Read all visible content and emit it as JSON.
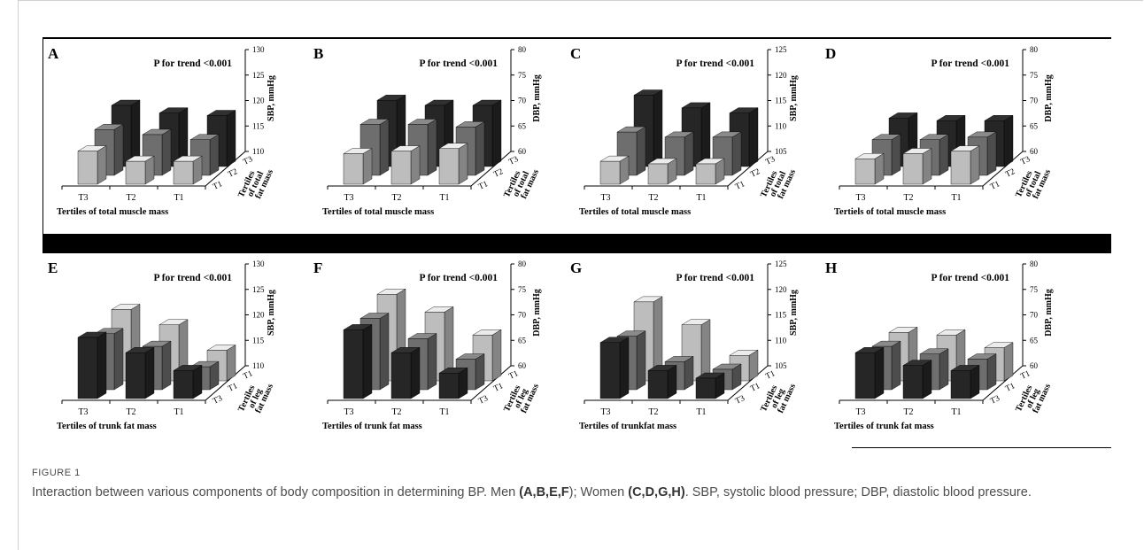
{
  "figure": {
    "label": "FIGURE 1",
    "caption_parts": [
      {
        "t": "Interaction between various components of body composition in determining BP. Men ",
        "b": false
      },
      {
        "t": "(A,B,E,F",
        "b": true
      },
      {
        "t": "); Women ",
        "b": false
      },
      {
        "t": "(C,D,G,H)",
        "b": true
      },
      {
        "t": ". SBP, systolic blood pressure; DBP, diastolic blood pressure.",
        "b": false
      }
    ]
  },
  "chart_data": [
    {
      "type": "bar",
      "panel": "A",
      "annotation": "P for trend <0.001",
      "z_label": "SBP, mmHg",
      "z_ticks": [
        110,
        115,
        120,
        125,
        130
      ],
      "zlim": [
        110,
        130
      ],
      "x_label": "Tertiles of total muscle mass",
      "x_categories": [
        "T3",
        "T2",
        "T1"
      ],
      "depth_label": [
        "Tertiles",
        "of total",
        "fat mass"
      ],
      "depth_categories": [
        "T1",
        "T2",
        "T3"
      ],
      "shade_order": [
        "light",
        "mid",
        "dark"
      ],
      "series": [
        {
          "name": "T1",
          "values": [
            116.5,
            114.5,
            114.5
          ]
        },
        {
          "name": "T2",
          "values": [
            119,
            118,
            117
          ]
        },
        {
          "name": "T3",
          "values": [
            122,
            120.5,
            120
          ]
        }
      ]
    },
    {
      "type": "bar",
      "panel": "B",
      "annotation": "P for trend <0.001",
      "z_label": "DBP, mmHg",
      "z_ticks": [
        60,
        65,
        70,
        75,
        80
      ],
      "zlim": [
        60,
        80
      ],
      "x_label": "Tertiles of total muscle mass",
      "x_categories": [
        "T3",
        "T2",
        "T1"
      ],
      "depth_label": [
        "Tertiles",
        "of total",
        "fat mass"
      ],
      "depth_categories": [
        "T1",
        "T2",
        "T3"
      ],
      "shade_order": [
        "light",
        "mid",
        "dark"
      ],
      "series": [
        {
          "name": "T1",
          "values": [
            66,
            66.5,
            67
          ]
        },
        {
          "name": "T2",
          "values": [
            70,
            70,
            69.5
          ]
        },
        {
          "name": "T3",
          "values": [
            73,
            72,
            72
          ]
        }
      ]
    },
    {
      "type": "bar",
      "panel": "C",
      "annotation": "P for trend <0.001",
      "z_label": "SBP, mmHg",
      "z_ticks": [
        105,
        110,
        115,
        120,
        125
      ],
      "zlim": [
        105,
        125
      ],
      "x_label": "Tertiles of total muscle mass",
      "x_categories": [
        "T3",
        "T2",
        "T1"
      ],
      "depth_label": [
        "Tertiles",
        "of total",
        "fat mass"
      ],
      "depth_categories": [
        "T1",
        "T2",
        "T3"
      ],
      "shade_order": [
        "light",
        "mid",
        "dark"
      ],
      "series": [
        {
          "name": "T1",
          "values": [
            109.5,
            109,
            109
          ]
        },
        {
          "name": "T2",
          "values": [
            113.5,
            112.5,
            112.5
          ]
        },
        {
          "name": "T3",
          "values": [
            119,
            116.5,
            115.5
          ]
        }
      ]
    },
    {
      "type": "bar",
      "panel": "D",
      "annotation": "P for trend <0.001",
      "z_label": "DBP, mmHg",
      "z_ticks": [
        60,
        65,
        70,
        75,
        80
      ],
      "zlim": [
        60,
        80
      ],
      "x_label": "Tertiels of total muscle mass",
      "x_categories": [
        "T3",
        "T2",
        "T1"
      ],
      "depth_label": [
        "Tertiles",
        "of total",
        "fat mass"
      ],
      "depth_categories": [
        "T1",
        "T2",
        "T3"
      ],
      "shade_order": [
        "light",
        "mid",
        "dark"
      ],
      "series": [
        {
          "name": "T1",
          "values": [
            65,
            66,
            66.5
          ]
        },
        {
          "name": "T2",
          "values": [
            67,
            67,
            67.5
          ]
        },
        {
          "name": "T3",
          "values": [
            69.5,
            69,
            69
          ]
        }
      ]
    },
    {
      "type": "bar",
      "panel": "E",
      "annotation": "P for trend <0.001",
      "z_label": "SBP, mmHg",
      "z_ticks": [
        110,
        115,
        120,
        125,
        130
      ],
      "zlim": [
        110,
        130
      ],
      "x_label": "Tertiles of trunk fat mass",
      "x_categories": [
        "T3",
        "T2",
        "T1"
      ],
      "depth_label": [
        "Tertiles",
        "of leg",
        "fat mass"
      ],
      "depth_categories": [
        "T3",
        "T1",
        "T1"
      ],
      "shade_order": [
        "dark",
        "mid",
        "light"
      ],
      "series": [
        {
          "name": "T3",
          "values": [
            122,
            119,
            115.5
          ]
        },
        {
          "name": "T1",
          "values": [
            121,
            118.5,
            114.5
          ]
        },
        {
          "name": "T1",
          "values": [
            124,
            121,
            116
          ]
        }
      ]
    },
    {
      "type": "bar",
      "panel": "F",
      "annotation": "P for trend <0.001",
      "z_label": "DBP, mmHg",
      "z_ticks": [
        60,
        65,
        70,
        75,
        80
      ],
      "zlim": [
        60,
        80
      ],
      "x_label": "Tertiles of trunk fat mass",
      "x_categories": [
        "T3",
        "T2",
        "T1"
      ],
      "depth_label": [
        "Tertiles",
        "of leg",
        "fat mass"
      ],
      "depth_categories": [
        "T3",
        "T1",
        "T1"
      ],
      "shade_order": [
        "dark",
        "mid",
        "light"
      ],
      "series": [
        {
          "name": "T3",
          "values": [
            73.5,
            69,
            65
          ]
        },
        {
          "name": "T1",
          "values": [
            74,
            70,
            66
          ]
        },
        {
          "name": "T1",
          "values": [
            77,
            73.5,
            69
          ]
        }
      ]
    },
    {
      "type": "bar",
      "panel": "G",
      "annotation": "P for trend <0.001",
      "z_label": "SBP, mmHg",
      "z_ticks": [
        105,
        110,
        115,
        120,
        125
      ],
      "zlim": [
        105,
        125
      ],
      "x_label": "Tertiles of trunkfat mass",
      "x_categories": [
        "T3",
        "T2",
        "T1"
      ],
      "depth_label": [
        "Tertiles",
        "of leg",
        "fat mass"
      ],
      "depth_categories": [
        "T3",
        "T1",
        "T1"
      ],
      "shade_order": [
        "dark",
        "mid",
        "light"
      ],
      "series": [
        {
          "name": "T3",
          "values": [
            116,
            110.5,
            109
          ]
        },
        {
          "name": "T1",
          "values": [
            115.5,
            110.5,
            109
          ]
        },
        {
          "name": "T1",
          "values": [
            120.5,
            116,
            110
          ]
        }
      ]
    },
    {
      "type": "bar",
      "panel": "H",
      "annotation": "P for trend <0.001",
      "z_label": "DBP, mmHg",
      "z_ticks": [
        60,
        65,
        70,
        75,
        80
      ],
      "zlim": [
        60,
        80
      ],
      "x_label": "Tertiles of trunk fat mass",
      "x_categories": [
        "T3",
        "T2",
        "T1"
      ],
      "depth_label": [
        "Tertiles",
        "of leg",
        "fat mass"
      ],
      "depth_categories": [
        "T3",
        "T1",
        "T1"
      ],
      "shade_order": [
        "dark",
        "mid",
        "light"
      ],
      "series": [
        {
          "name": "T3",
          "values": [
            69,
            66.5,
            65.5
          ]
        },
        {
          "name": "T1",
          "values": [
            68.5,
            67,
            66
          ]
        },
        {
          "name": "T1",
          "values": [
            69.5,
            69,
            66.5
          ]
        }
      ]
    }
  ],
  "colors": {
    "light": "#bdbdbd",
    "mid": "#6e6e6e",
    "dark": "#262626",
    "axis": "#000000",
    "caption": "#4d4d4d"
  }
}
